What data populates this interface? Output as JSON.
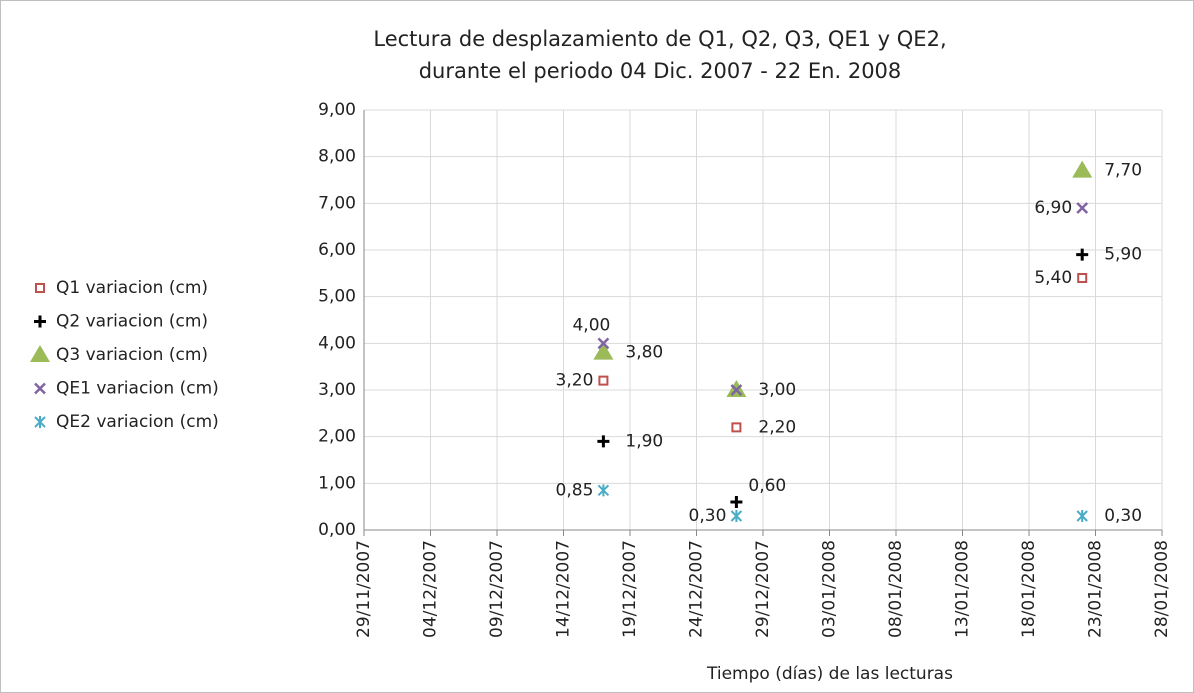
{
  "chart_data": {
    "type": "scatter",
    "title": [
      "Lectura de desplazamiento de Q1, Q2, Q3, QE1 y QE2,",
      "durante el periodo 04 Dic. 2007 - 22 En. 2008"
    ],
    "xlabel": "Tiempo (días) de las lecturas",
    "x": [
      "17/12/2007",
      "27/12/2007",
      "22/01/2008"
    ],
    "xlim": [
      "29/11/2007",
      "28/01/2008"
    ],
    "xticks": [
      "29/11/2007",
      "04/12/2007",
      "09/12/2007",
      "14/12/2007",
      "19/12/2007",
      "24/12/2007",
      "29/12/2007",
      "03/01/2008",
      "08/01/2008",
      "13/01/2008",
      "18/01/2008",
      "23/01/2008",
      "28/01/2008"
    ],
    "ylim": [
      0,
      9
    ],
    "yticks": [
      {
        "value": 0,
        "label": "0,00"
      },
      {
        "value": 1,
        "label": "1,00"
      },
      {
        "value": 2,
        "label": "2,00"
      },
      {
        "value": 3,
        "label": "3,00"
      },
      {
        "value": 4,
        "label": "4,00"
      },
      {
        "value": 5,
        "label": "5,00"
      },
      {
        "value": 6,
        "label": "6,00"
      },
      {
        "value": 7,
        "label": "7,00"
      },
      {
        "value": 8,
        "label": "8,00"
      },
      {
        "value": 9,
        "label": "9,00"
      }
    ],
    "grid": true,
    "legend": "left",
    "series": [
      {
        "name": "Q1 variacion (cm)",
        "color": "#c0504d",
        "marker": "square",
        "values": [
          3.2,
          2.2,
          5.4
        ],
        "value_labels": [
          "3,20",
          "2,20",
          "5,40"
        ]
      },
      {
        "name": "Q2 variacion (cm)",
        "color": "#000000",
        "marker": "plus",
        "values": [
          1.9,
          0.6,
          5.9
        ],
        "value_labels": [
          "1,90",
          "0,60",
          "5,90"
        ]
      },
      {
        "name": "Q3 variacion (cm)",
        "color": "#9bbb59",
        "marker": "triangle",
        "values": [
          3.8,
          3.0,
          7.7
        ],
        "value_labels": [
          "3,80",
          "3,00",
          "7,70"
        ]
      },
      {
        "name": "QE1 variacion (cm)",
        "color": "#8064a2",
        "marker": "x",
        "values": [
          4.0,
          3.0,
          6.9
        ],
        "value_labels": [
          "4,00",
          null,
          "6,90"
        ]
      },
      {
        "name": "QE2 variacion (cm)",
        "color": "#4bacc6",
        "marker": "star",
        "values": [
          0.85,
          0.3,
          0.3
        ],
        "value_labels": [
          "0,85",
          "0,30",
          "0,30"
        ]
      }
    ]
  }
}
